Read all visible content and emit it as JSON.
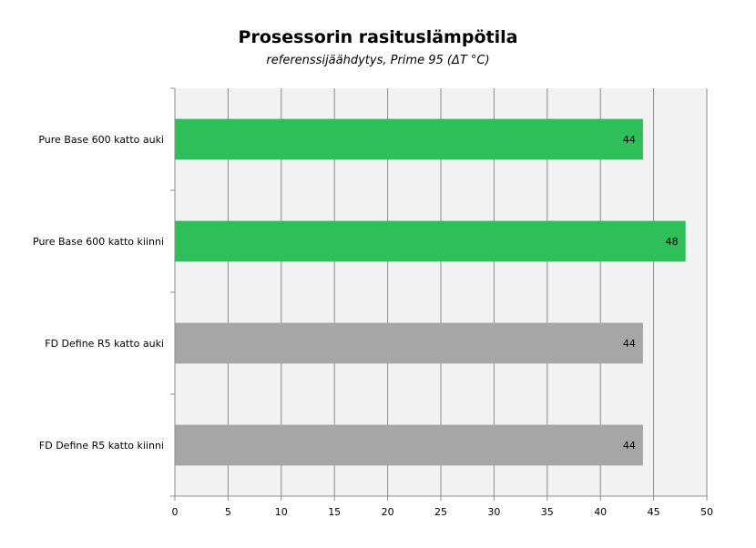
{
  "chart_data": {
    "type": "bar",
    "orientation": "horizontal",
    "title": "Prosessorin rasituslämpötila",
    "subtitle": "referenssijäähdytys, Prime 95 (ΔT °C)",
    "categories": [
      "Pure Base 600 katto auki",
      "Pure Base 600 katto kiinni",
      "FD Define R5 katto auki",
      "FD Define R5 katto kiinni"
    ],
    "values": [
      44,
      48,
      44,
      44
    ],
    "bar_colors": [
      "#2ebf5a",
      "#2ebf5a",
      "#a6a6a6",
      "#a6a6a6"
    ],
    "xlim": [
      0,
      50
    ],
    "xticks": [
      0,
      5,
      10,
      15,
      20,
      25,
      30,
      35,
      40,
      45,
      50
    ],
    "grid": true,
    "data_labels": true,
    "plot_background": "#f2f2f2"
  }
}
